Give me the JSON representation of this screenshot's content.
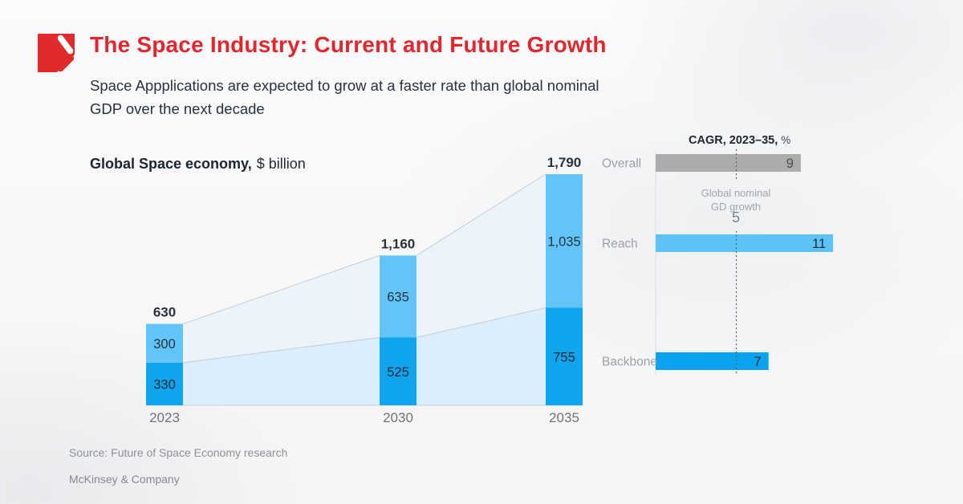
{
  "header": {
    "title": "The Space Industry: Current and Future Growth",
    "subtitle_line1": "Space Appplications are expected to grow at a faster rate than global nominal",
    "subtitle_line2": "GDP over the next decade"
  },
  "footer": {
    "source": "Source: Future of Space Economy research",
    "brand": "McKinsey & Company"
  },
  "colors": {
    "accent_red": "#E2262B",
    "dark_navy": "#273140",
    "reach_blue": "#63C4F7",
    "backbone_blue": "#0FA4EE",
    "overall_gray": "#ACACAC",
    "band_upper": "#EBF4FB",
    "band_lower": "#DCEEFB",
    "band_line": "#C5CCD3",
    "muted_gray": "#9CA1A8"
  },
  "chart_data": [
    {
      "type": "area",
      "title": "Global Space economy, $ billion",
      "title_bold": "Global Space economy,",
      "title_unit": "$ billion",
      "categories": [
        "2023",
        "2030",
        "2035"
      ],
      "series": [
        {
          "name": "Backbone",
          "values": [
            330,
            525,
            755
          ],
          "labels": [
            "330",
            "525",
            "755"
          ],
          "color": "#0FA4EE"
        },
        {
          "name": "Reach",
          "values": [
            300,
            635,
            1035
          ],
          "labels": [
            "300",
            "635",
            "1,035"
          ],
          "color": "#63C4F7"
        }
      ],
      "totals": [
        630,
        1160,
        1790
      ],
      "total_labels": [
        "630",
        "1,160",
        "1,790"
      ],
      "ylim": [
        0,
        1790
      ],
      "grid": false,
      "legend": "none"
    },
    {
      "type": "bar",
      "orientation": "horizontal",
      "title": "CAGR, 2023–35, %",
      "title_bold": "CAGR, 2023–35,",
      "title_unit": "%",
      "categories": [
        "Overall",
        "Reach",
        "Backbone"
      ],
      "values": [
        9,
        11,
        7
      ],
      "value_labels": [
        "9",
        "11",
        "7"
      ],
      "bar_colors": [
        "#ACACAC",
        "#5BC3F6",
        "#0AA3ED"
      ],
      "xlim": [
        0,
        11
      ],
      "reference_line": {
        "value": 5,
        "display": "5",
        "label_line1": "Global nominal",
        "label_line2": "GD growth"
      }
    }
  ]
}
